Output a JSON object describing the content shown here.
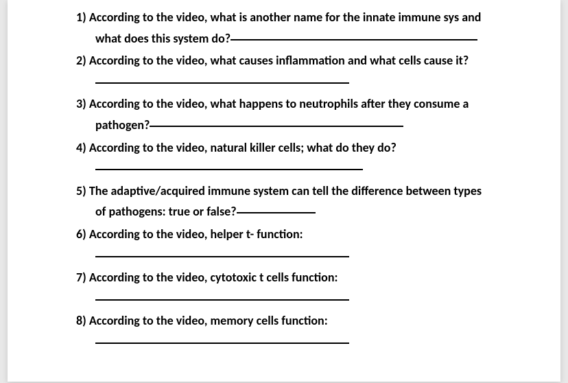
{
  "questions": [
    {
      "number": "1)",
      "text_before": "According to the video, what is another name for the innate immune sys and what does this system do?",
      "blank_width": 360
    },
    {
      "number": "2)",
      "text_before": "According to the video, what causes inflammation and what cells cause it?",
      "blank_width": 370
    },
    {
      "number": "3)",
      "text_before": "According to the video, what happens to neutrophils after they consume a pathogen?",
      "blank_width": 370
    },
    {
      "number": "4)",
      "text_before": "According to the video, natural killer cells; what do they do?",
      "blank_width": 390
    },
    {
      "number": "5)",
      "text_before": "The adaptive/acquired immune system can tell the difference between types of pathogens: true or false?",
      "blank_width": 115
    },
    {
      "number": "6)",
      "text_before": "According to the video, helper t- function:",
      "blank_width": 370
    },
    {
      "number": "7)",
      "text_before": "According to the video, cytotoxic t cells function:",
      "blank_width": 370
    },
    {
      "number": "8)",
      "text_before": "According to the video, memory cells function:",
      "blank_width": 370
    }
  ],
  "styling": {
    "page_background": "#ffffff",
    "body_background": "#e8e8e8",
    "text_color": "#000000",
    "font_weight": "bold",
    "font_size": 18,
    "line_height": 1.7,
    "blank_border_color": "#000000",
    "blank_border_width": 2
  }
}
